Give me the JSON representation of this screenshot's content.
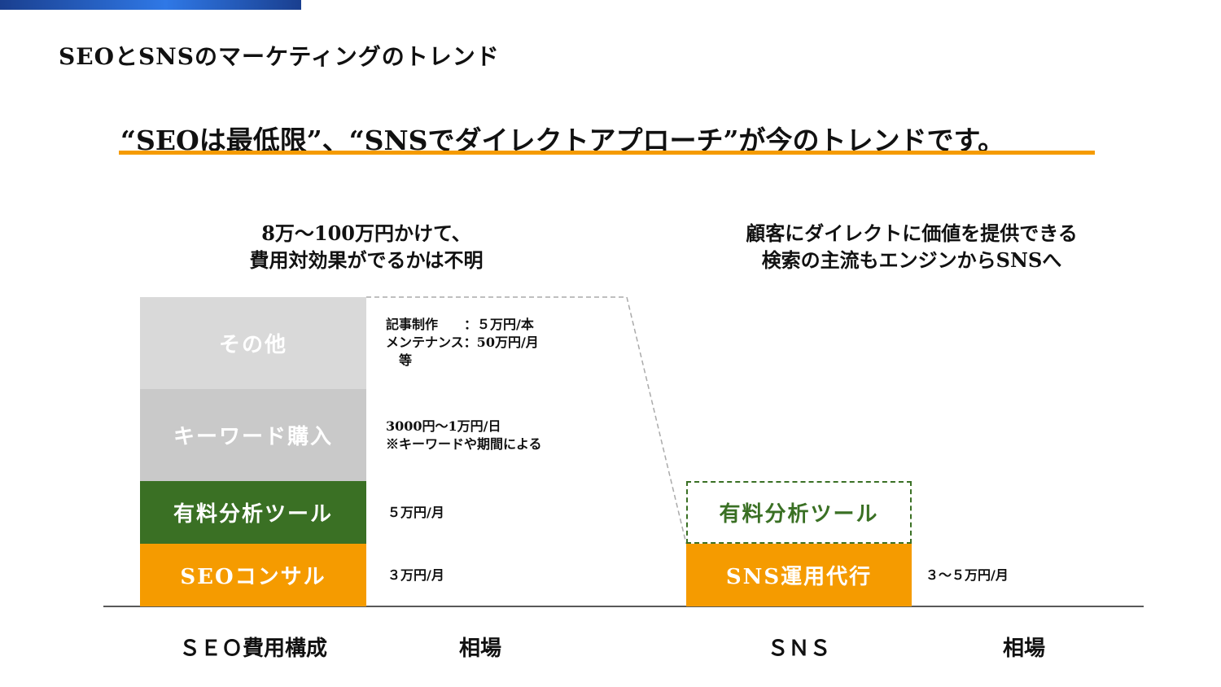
{
  "title": "SEOとSNSのマーケティングのトレンド",
  "headline": "“SEOは最低限”、“SNSでダイレクトアプローチ”が今のトレンドです。",
  "left_caption": [
    "8万～100万円かけて、",
    "費用対効果がでるかは不明"
  ],
  "right_caption": [
    "顧客にダイレクトに価値を提供できる",
    "検索の主流もエンジンからSNSへ"
  ],
  "seo_blocks": [
    {
      "label": "その他",
      "color": "#d9d9d9"
    },
    {
      "label": "キーワード購入",
      "color": "#c9c9c9"
    },
    {
      "label": "有料分析ツール",
      "color": "#3a7024"
    },
    {
      "label": "SEOコンサル",
      "color": "#f59b00"
    }
  ],
  "seo_notes": {
    "other": [
      "記事制作　　：５万円/本",
      "メンテナンス：50万円/月",
      "　等"
    ],
    "keyword": [
      "3000円～1万円/日",
      "※キーワードや期間による"
    ],
    "tool": "５万円/月",
    "consult": "３万円/月"
  },
  "sns_blocks": {
    "tool": "有料分析ツール",
    "agency": "SNS運用代行",
    "agency_note": "３～５万円/月"
  },
  "axis_labels": [
    "ＳＥＯ費用構成",
    "相場",
    "ＳＮＳ",
    "相場"
  ]
}
